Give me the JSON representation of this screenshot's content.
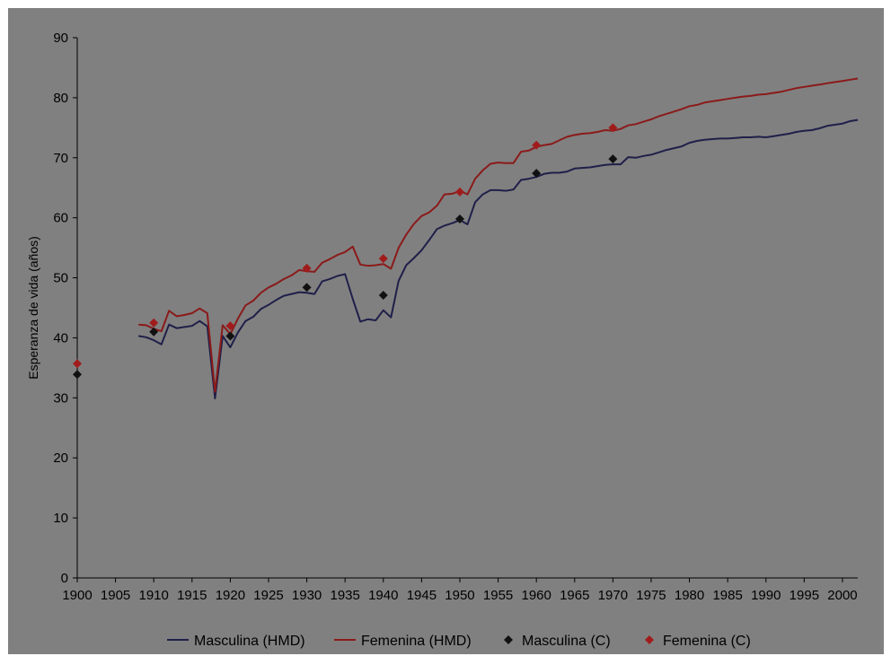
{
  "chart_data": {
    "type": "line",
    "ylabel": "Esperanza de vida (años)",
    "xlabel": "",
    "xlim": [
      1900,
      2002
    ],
    "ylim": [
      0,
      90
    ],
    "xticks": [
      1900,
      1905,
      1910,
      1915,
      1920,
      1925,
      1930,
      1935,
      1940,
      1945,
      1950,
      1955,
      1960,
      1965,
      1970,
      1975,
      1980,
      1985,
      1990,
      1995,
      2000
    ],
    "yticks": [
      0,
      10,
      20,
      30,
      40,
      50,
      60,
      70,
      80,
      90
    ],
    "grid": false,
    "legend_position": "bottom",
    "series": [
      {
        "name": "Masculina (HMD)",
        "kind": "line",
        "color": "#1f1f4a",
        "x": [
          1908,
          1909,
          1910,
          1911,
          1912,
          1913,
          1914,
          1915,
          1916,
          1917,
          1918,
          1919,
          1920,
          1921,
          1922,
          1923,
          1924,
          1925,
          1926,
          1927,
          1928,
          1929,
          1930,
          1931,
          1932,
          1933,
          1934,
          1935,
          1936,
          1937,
          1938,
          1939,
          1940,
          1941,
          1942,
          1943,
          1944,
          1945,
          1946,
          1947,
          1948,
          1949,
          1950,
          1951,
          1952,
          1953,
          1954,
          1955,
          1956,
          1957,
          1958,
          1959,
          1960,
          1961,
          1962,
          1963,
          1964,
          1965,
          1966,
          1967,
          1968,
          1969,
          1970,
          1971,
          1972,
          1973,
          1974,
          1975,
          1976,
          1977,
          1978,
          1979,
          1980,
          1981,
          1982,
          1983,
          1984,
          1985,
          1986,
          1987,
          1988,
          1989,
          1990,
          1991,
          1992,
          1993,
          1994,
          1995,
          1996,
          1997,
          1998,
          1999,
          2000,
          2001,
          2002
        ],
        "y": [
          40.3,
          40.1,
          39.6,
          38.9,
          42.2,
          41.6,
          41.8,
          42.0,
          42.8,
          41.9,
          29.9,
          40.3,
          38.4,
          40.9,
          42.8,
          43.5,
          44.8,
          45.5,
          46.3,
          47.0,
          47.3,
          47.6,
          47.5,
          47.3,
          49.4,
          49.8,
          50.3,
          50.6,
          46.5,
          42.7,
          43.1,
          42.9,
          44.6,
          43.4,
          49.5,
          52.1,
          53.3,
          54.6,
          56.3,
          58.1,
          58.7,
          59.1,
          59.6,
          58.9,
          62.6,
          63.9,
          64.6,
          64.6,
          64.5,
          64.7,
          66.3,
          66.5,
          66.8,
          67.3,
          67.5,
          67.5,
          67.7,
          68.2,
          68.3,
          68.4,
          68.6,
          68.8,
          68.9,
          68.9,
          70.1,
          70.0,
          70.3,
          70.5,
          70.9,
          71.3,
          71.6,
          71.9,
          72.5,
          72.8,
          73.0,
          73.1,
          73.2,
          73.2,
          73.3,
          73.4,
          73.4,
          73.5,
          73.4,
          73.6,
          73.8,
          74.0,
          74.3,
          74.5,
          74.6,
          74.9,
          75.3,
          75.5,
          75.7,
          76.1,
          76.3
        ]
      },
      {
        "name": "Femenina (HMD)",
        "kind": "line",
        "color": "#8b1a1a",
        "x": [
          1908,
          1909,
          1910,
          1911,
          1912,
          1913,
          1914,
          1915,
          1916,
          1917,
          1918,
          1919,
          1920,
          1921,
          1922,
          1923,
          1924,
          1925,
          1926,
          1927,
          1928,
          1929,
          1930,
          1931,
          1932,
          1933,
          1934,
          1935,
          1936,
          1937,
          1938,
          1939,
          1940,
          1941,
          1942,
          1943,
          1944,
          1945,
          1946,
          1947,
          1948,
          1949,
          1950,
          1951,
          1952,
          1953,
          1954,
          1955,
          1956,
          1957,
          1958,
          1959,
          1960,
          1961,
          1962,
          1963,
          1964,
          1965,
          1966,
          1967,
          1968,
          1969,
          1970,
          1971,
          1972,
          1973,
          1974,
          1975,
          1976,
          1977,
          1978,
          1979,
          1980,
          1981,
          1982,
          1983,
          1984,
          1985,
          1986,
          1987,
          1988,
          1989,
          1990,
          1991,
          1992,
          1993,
          1994,
          1995,
          1996,
          1997,
          1998,
          1999,
          2000,
          2001,
          2002
        ],
        "y": [
          42.2,
          42.1,
          41.5,
          41.1,
          44.5,
          43.6,
          43.8,
          44.1,
          44.9,
          44.1,
          31.0,
          42.1,
          40.6,
          43.2,
          45.4,
          46.2,
          47.5,
          48.4,
          49.0,
          49.8,
          50.4,
          51.3,
          51.1,
          51.0,
          52.5,
          53.1,
          53.8,
          54.3,
          55.2,
          52.2,
          52.0,
          52.1,
          52.3,
          51.5,
          55.0,
          57.2,
          59.0,
          60.3,
          60.9,
          62.0,
          63.9,
          64.0,
          64.5,
          63.9,
          66.5,
          67.9,
          69.0,
          69.2,
          69.1,
          69.1,
          71.0,
          71.2,
          71.8,
          72.1,
          72.3,
          72.9,
          73.5,
          73.8,
          74.0,
          74.1,
          74.3,
          74.6,
          74.5,
          74.8,
          75.4,
          75.6,
          76.0,
          76.4,
          76.9,
          77.3,
          77.7,
          78.1,
          78.6,
          78.8,
          79.2,
          79.4,
          79.6,
          79.8,
          80.0,
          80.2,
          80.3,
          80.5,
          80.6,
          80.8,
          81.0,
          81.3,
          81.6,
          81.8,
          82.0,
          82.2,
          82.4,
          82.6,
          82.8,
          83.0,
          83.2
        ]
      },
      {
        "name": "Masculina (C)",
        "kind": "scatter",
        "marker": "diamond",
        "color": "#111111",
        "x": [
          1900,
          1910,
          1920,
          1930,
          1940,
          1950,
          1960,
          1970
        ],
        "y": [
          33.9,
          41.0,
          40.3,
          48.4,
          47.1,
          59.8,
          67.4,
          69.8
        ]
      },
      {
        "name": "Femenina (C)",
        "kind": "scatter",
        "marker": "diamond",
        "color": "#a01c1c",
        "x": [
          1900,
          1910,
          1920,
          1930,
          1940,
          1950,
          1960,
          1970
        ],
        "y": [
          35.7,
          42.5,
          42.0,
          51.6,
          53.2,
          64.3,
          72.1,
          75.0
        ]
      }
    ]
  }
}
